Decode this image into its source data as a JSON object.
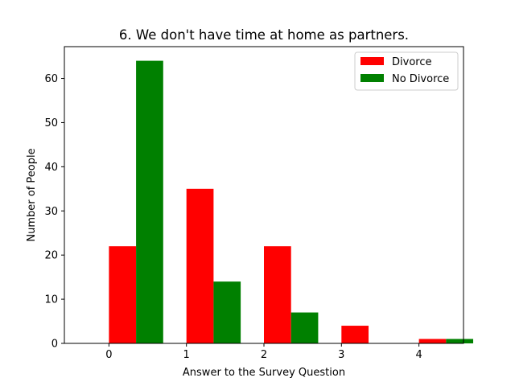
{
  "chart_data": {
    "type": "bar",
    "title": "6. We don't have time at home as partners.",
    "xlabel": "Answer to the Survey Question",
    "ylabel": "Number of People",
    "categories": [
      "0",
      "1",
      "2",
      "3",
      "4"
    ],
    "series": [
      {
        "name": "Divorce",
        "color": "#ff0000",
        "values": [
          22,
          35,
          22,
          4,
          1
        ]
      },
      {
        "name": "No Divorce",
        "color": "#008000",
        "values": [
          64,
          14,
          7,
          0,
          1
        ]
      }
    ],
    "ylim": [
      0,
      67.2
    ],
    "yticks": [
      0,
      10,
      20,
      30,
      40,
      50,
      60
    ],
    "grid": false,
    "legend_position": "top-right"
  }
}
